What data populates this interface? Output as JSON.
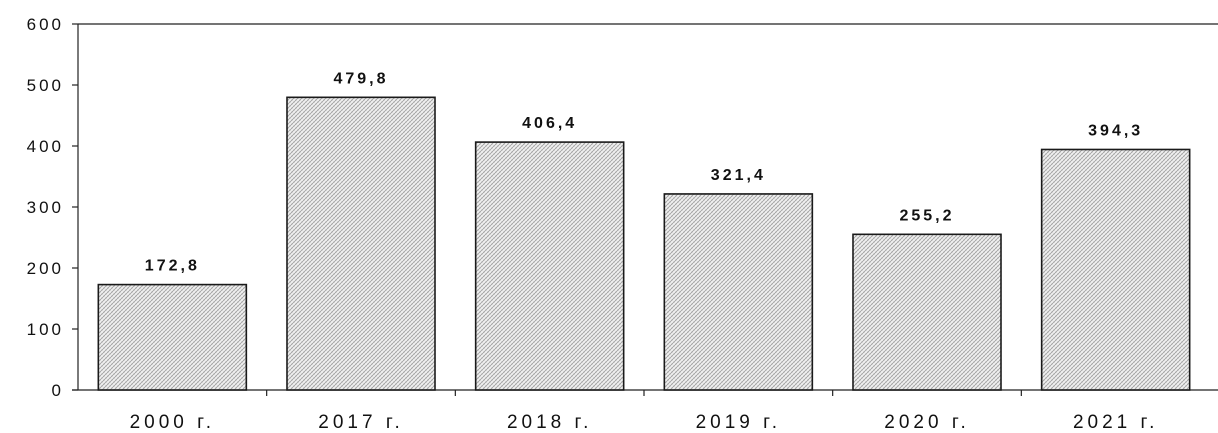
{
  "chart_data": {
    "type": "bar",
    "categories": [
      "2000 г.",
      "2017 г.",
      "2018 г.",
      "2019 г.",
      "2020 г.",
      "2021 г."
    ],
    "values": [
      172.8,
      479.8,
      406.4,
      321.4,
      255.2,
      394.3
    ],
    "data_labels": [
      "172,8",
      "479,8",
      "406,4",
      "321,4",
      "255,2",
      "394,3"
    ],
    "y_ticks": [
      0,
      100,
      200,
      300,
      400,
      500,
      600
    ],
    "ylim": [
      0,
      600
    ],
    "title": "",
    "xlabel": "",
    "ylabel": "",
    "grid": false,
    "legend": "none",
    "bar_fill": "hatched-gray"
  }
}
